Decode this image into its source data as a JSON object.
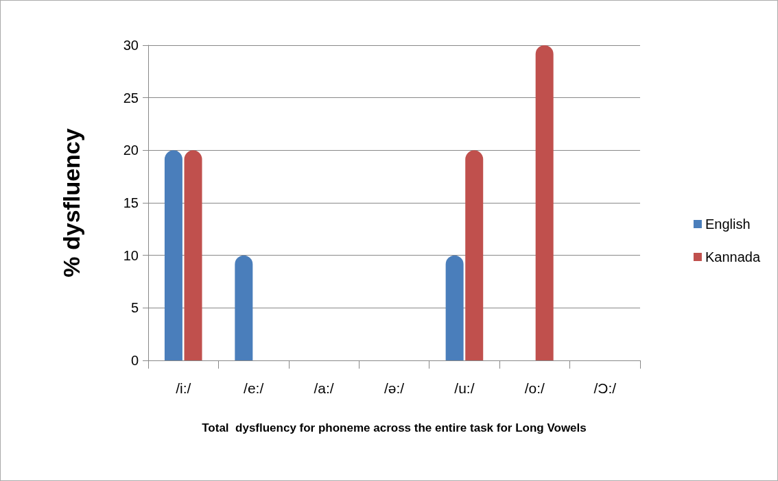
{
  "chart_data": {
    "type": "bar",
    "xlabel": "Total  dysfluency for phoneme across the entire task for Long Vowels",
    "ylabel": "% dysfluency",
    "categories": [
      "/i:/",
      "/e:/",
      "/a:/",
      "/ə:/",
      "/u:/",
      "/o:/",
      "/Ɔ:/"
    ],
    "series": [
      {
        "name": "English",
        "color": "#4a7ebb",
        "values": [
          20,
          10,
          0,
          0,
          10,
          0,
          0
        ]
      },
      {
        "name": "Kannada",
        "color": "#c0504d",
        "values": [
          20,
          0,
          0,
          0,
          20,
          30,
          0
        ]
      }
    ],
    "ylim": [
      0,
      30
    ],
    "yticks": [
      0,
      5,
      10,
      15,
      20,
      25,
      30
    ],
    "grid": "y",
    "legend": "right"
  }
}
